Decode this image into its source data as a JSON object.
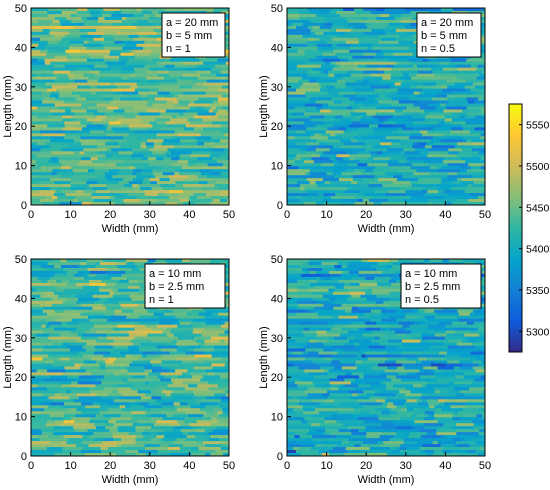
{
  "chart_data": [
    {
      "type": "heatmap",
      "xlabel": "Width (mm)",
      "ylabel": "Length (mm)",
      "xlim": [
        0,
        50
      ],
      "ylim": [
        0,
        50
      ],
      "x_ticks": [
        0,
        10,
        20,
        30,
        40,
        50
      ],
      "y_ticks": [
        0,
        10,
        20,
        30,
        40,
        50
      ],
      "x_tick_labels": [
        "0",
        "10",
        "20",
        "30",
        "40",
        "50"
      ],
      "y_tick_labels": [
        "0",
        "10",
        "20",
        "30",
        "40",
        "50"
      ],
      "params": [
        "a = 20 mm",
        "b = 5 mm",
        "n = 1"
      ],
      "approx_mean": 5440
    },
    {
      "type": "heatmap",
      "xlabel": "Width (mm)",
      "ylabel": "Length (mm)",
      "xlim": [
        0,
        50
      ],
      "ylim": [
        0,
        50
      ],
      "x_ticks": [
        0,
        10,
        20,
        30,
        40,
        50
      ],
      "y_ticks": [
        0,
        10,
        20,
        30,
        40,
        50
      ],
      "x_tick_labels": [
        "0",
        "10",
        "20",
        "30",
        "40",
        "50"
      ],
      "y_tick_labels": [
        "0",
        "10",
        "20",
        "30",
        "40",
        "50"
      ],
      "params": [
        "a = 20 mm",
        "b = 5 mm",
        "n = 0.5"
      ],
      "approx_mean": 5405
    },
    {
      "type": "heatmap",
      "xlabel": "Width (mm)",
      "ylabel": "Length (mm)",
      "xlim": [
        0,
        50
      ],
      "ylim": [
        0,
        50
      ],
      "x_ticks": [
        0,
        10,
        20,
        30,
        40,
        50
      ],
      "y_ticks": [
        0,
        10,
        20,
        30,
        40,
        50
      ],
      "x_tick_labels": [
        "0",
        "10",
        "20",
        "30",
        "40",
        "50"
      ],
      "y_tick_labels": [
        "0",
        "10",
        "20",
        "30",
        "40",
        "50"
      ],
      "params": [
        "a = 10 mm",
        "b = 2.5 mm",
        "n = 1"
      ],
      "approx_mean": 5430
    },
    {
      "type": "heatmap",
      "xlabel": "Width (mm)",
      "ylabel": "Length (mm)",
      "xlim": [
        0,
        50
      ],
      "ylim": [
        0,
        50
      ],
      "x_ticks": [
        0,
        10,
        20,
        30,
        40,
        50
      ],
      "y_ticks": [
        0,
        10,
        20,
        30,
        40,
        50
      ],
      "x_tick_labels": [
        "0",
        "10",
        "20",
        "30",
        "40",
        "50"
      ],
      "y_tick_labels": [
        "0",
        "10",
        "20",
        "30",
        "40",
        "50"
      ],
      "params": [
        "a = 10 mm",
        "b = 2.5 mm",
        "n = 0.5"
      ],
      "approx_mean": 5400
    }
  ],
  "colorbar": {
    "range": [
      5275,
      5575
    ],
    "ticks": [
      5300,
      5350,
      5400,
      5450,
      5500,
      5550
    ],
    "tick_labels": [
      "5300",
      "5350",
      "5400",
      "5450",
      "5500",
      "5550"
    ],
    "colormap": [
      "#352a87",
      "#0f5cdd",
      "#1481d6",
      "#06a4ca",
      "#2eb7a4",
      "#87bf77",
      "#d1bb59",
      "#fec832",
      "#f9fb0e"
    ]
  }
}
